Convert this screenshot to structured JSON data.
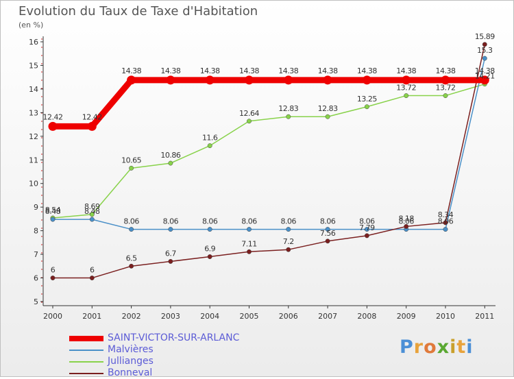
{
  "title": "Evolution du Taux de Taxe d'Habitation",
  "unit": "(en %)",
  "brand": "Proxiti",
  "brand_colors": [
    "#4b8fd6",
    "#e8a33c",
    "#e07a3b",
    "#5aa832",
    "#c9a02c",
    "#e8a33c",
    "#4b8fd6"
  ],
  "chart_data": {
    "type": "line",
    "title": "Evolution du Taux de Taxe d'Habitation",
    "ylabel": "(en %)",
    "xlabel": "",
    "x": [
      "2000",
      "2001",
      "2002",
      "2003",
      "2004",
      "2005",
      "2006",
      "2007",
      "2008",
      "2009",
      "2010",
      "2011"
    ],
    "ylim": [
      5,
      16
    ],
    "yticks": [
      "5",
      "6",
      "7",
      "8",
      "9",
      "10",
      "11",
      "12",
      "13",
      "14",
      "15",
      "16"
    ],
    "grid": false,
    "legend_position": "bottom-left",
    "series": [
      {
        "name": "SAINT-VICTOR-SUR-ARLANC",
        "color": "#ee0000",
        "values": [
          12.42,
          12.42,
          14.38,
          14.38,
          14.38,
          14.38,
          14.38,
          14.38,
          14.38,
          14.38,
          14.38,
          14.38
        ],
        "labels": [
          "12.42",
          "12.42",
          "14.38",
          "14.38",
          "14.38",
          "14.38",
          "14.38",
          "14.38",
          "14.38",
          "14.38",
          "14.38",
          "14.38"
        ]
      },
      {
        "name": "Malvières",
        "color": "#4a90c8",
        "values": [
          8.48,
          8.48,
          8.06,
          8.06,
          8.06,
          8.06,
          8.06,
          8.06,
          8.06,
          8.06,
          8.06,
          15.3
        ],
        "labels": [
          "8.48",
          "8.48",
          "8.06",
          "8.06",
          "8.06",
          "8.06",
          "8.06",
          "8.06",
          "8.06",
          "8.06",
          "8.06",
          "15.3"
        ]
      },
      {
        "name": "Jullianges",
        "color": "#88d24a",
        "values": [
          8.54,
          8.69,
          10.65,
          10.86,
          11.6,
          12.64,
          12.83,
          12.83,
          13.25,
          13.72,
          13.72,
          14.21
        ],
        "labels": [
          "8.54",
          "8.69",
          "10.65",
          "10.86",
          "11.6",
          "12.64",
          "12.83",
          "12.83",
          "13.25",
          "13.72",
          "13.72",
          "14.21"
        ]
      },
      {
        "name": "Bonneval",
        "color": "#7a1f1f",
        "values": [
          6,
          6,
          6.5,
          6.7,
          6.9,
          7.11,
          7.2,
          7.56,
          7.79,
          8.18,
          8.34,
          15.89
        ],
        "labels": [
          "6",
          "6",
          "6.5",
          "6.7",
          "6.9",
          "7.11",
          "7.2",
          "7.56",
          "7.79",
          "8.18",
          "8.34",
          "15.89"
        ]
      }
    ]
  }
}
